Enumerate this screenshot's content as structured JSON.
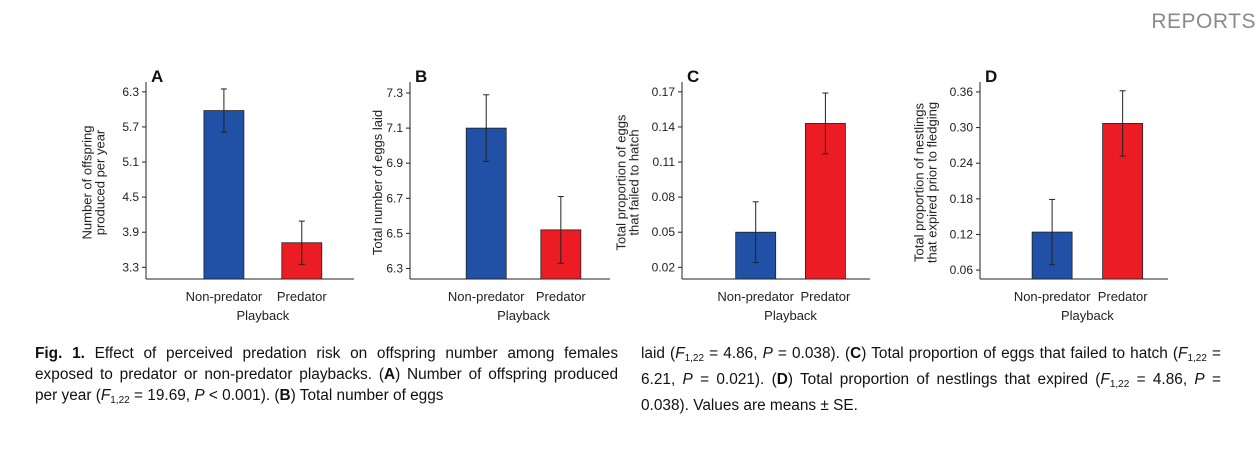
{
  "header": {
    "label": "REPORTS"
  },
  "chart_data": [
    {
      "type": "bar",
      "panel": "A",
      "ylabel": [
        "Number of offspring",
        "produced per year"
      ],
      "xlabel": "Playback",
      "categories": [
        "Non-predator",
        "Predator"
      ],
      "values": [
        5.98,
        3.72
      ],
      "errors": [
        0.37,
        0.37
      ],
      "colors": [
        "#2151a6",
        "#ec1c24"
      ],
      "yticks": [
        "3.3",
        "3.9",
        "4.5",
        "5.1",
        "5.7",
        "6.3"
      ],
      "ylim": [
        3.1,
        6.4
      ]
    },
    {
      "type": "bar",
      "panel": "B",
      "ylabel": [
        "Total number of eggs laid"
      ],
      "xlabel": "Playback",
      "categories": [
        "Non-predator",
        "Predator"
      ],
      "values": [
        7.1,
        6.52
      ],
      "errors": [
        0.19,
        0.19
      ],
      "colors": [
        "#2151a6",
        "#ec1c24"
      ],
      "yticks": [
        "6.3",
        "6.5",
        "6.7",
        "6.9",
        "7.1",
        "7.3"
      ],
      "ylim": [
        6.24,
        7.34
      ]
    },
    {
      "type": "bar",
      "panel": "C",
      "ylabel": [
        "Total proportion of eggs",
        "that failed to hatch"
      ],
      "xlabel": "Playback",
      "categories": [
        "Non-predator",
        "Predator"
      ],
      "values": [
        0.05,
        0.143
      ],
      "errors": [
        0.026,
        0.026
      ],
      "colors": [
        "#2151a6",
        "#ec1c24"
      ],
      "yticks": [
        "0.02",
        "0.05",
        "0.08",
        "0.11",
        "0.14",
        "0.17"
      ],
      "ylim": [
        0.01,
        0.175
      ]
    },
    {
      "type": "bar",
      "panel": "D",
      "ylabel": [
        "Total proportion of nestlings",
        "that expired prior to fledging"
      ],
      "xlabel": "Playback",
      "categories": [
        "Non-predator",
        "Predator"
      ],
      "values": [
        0.124,
        0.307
      ],
      "errors": [
        0.055,
        0.055
      ],
      "colors": [
        "#2151a6",
        "#ec1c24"
      ],
      "yticks": [
        "0.06",
        "0.12",
        "0.18",
        "0.24",
        "0.30",
        "0.36"
      ],
      "ylim": [
        0.045,
        0.37
      ]
    }
  ],
  "caption": {
    "fig_label": "Fig. 1.",
    "col1_part1": " Effect of perceived predation risk on offspring number among females exposed to predator or non-predator playbacks. (",
    "panel_a": "A",
    "col1_part2": ") Number of offspring produced per year (",
    "stat_a": "= 19.69, ",
    "p_a": "< 0.001). (",
    "panel_b": "B",
    "col1_part3": ") Total number of eggs",
    "col2_part1": "laid (",
    "stat_b": "= 4.86, ",
    "p_b": "= 0.038). (",
    "panel_c": "C",
    "col2_part2": ") Total proportion of eggs that failed to hatch (",
    "stat_c": "= 6.21, ",
    "p_c": "= 0.021). (",
    "panel_d": "D",
    "col2_part3": ") Total proportion of nestlings that expired (",
    "stat_d": "= 4.86, ",
    "p_d": "= 0.038). Values are means ± SE.",
    "f_symbol": "F",
    "f_sub": "1,22",
    "p_symbol": "P"
  }
}
